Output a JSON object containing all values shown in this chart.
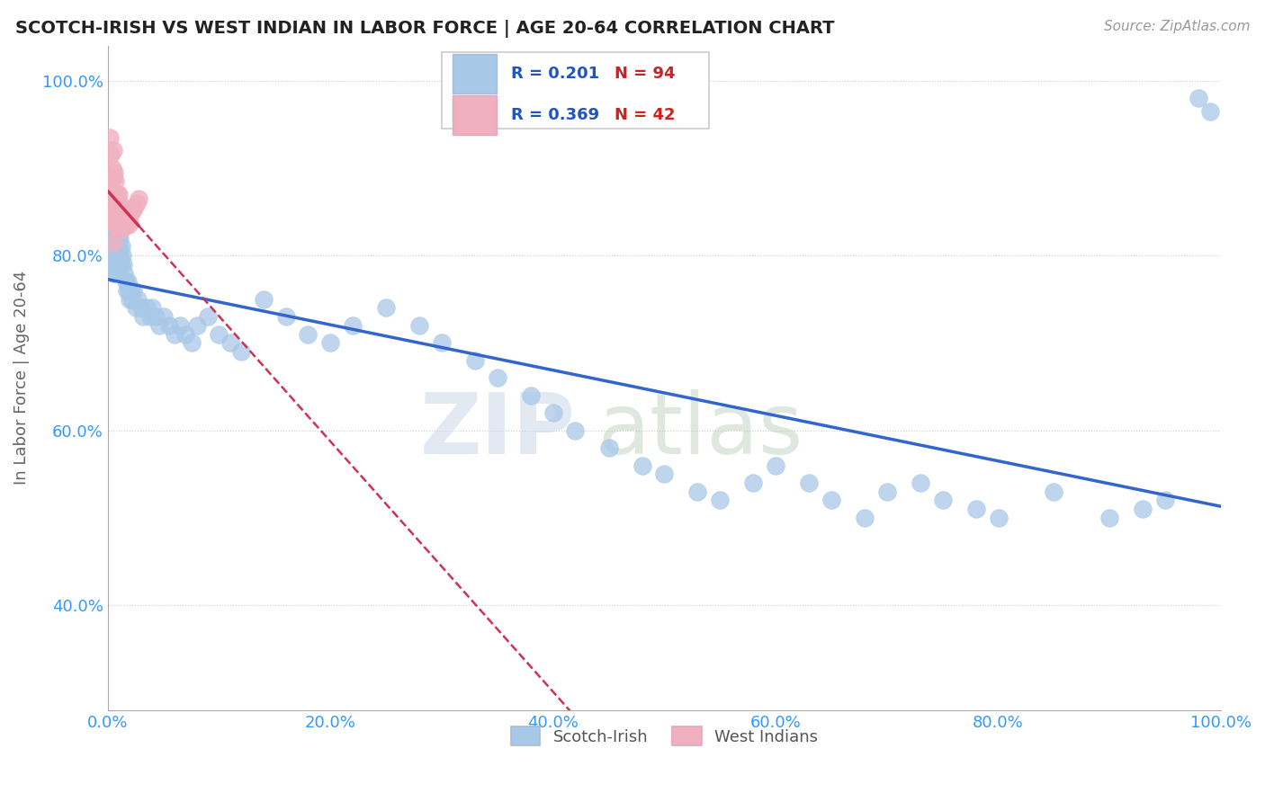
{
  "title": "SCOTCH-IRISH VS WEST INDIAN IN LABOR FORCE | AGE 20-64 CORRELATION CHART",
  "source": "Source: ZipAtlas.com",
  "ylabel": "In Labor Force | Age 20-64",
  "xlim": [
    0.0,
    1.0
  ],
  "ylim": [
    0.28,
    1.04
  ],
  "xticks": [
    0.0,
    0.2,
    0.4,
    0.6,
    0.8,
    1.0
  ],
  "xticklabels": [
    "0.0%",
    "20.0%",
    "40.0%",
    "60.0%",
    "80.0%",
    "100.0%"
  ],
  "ytick_positions": [
    0.4,
    0.6,
    0.8,
    1.0
  ],
  "yticklabels": [
    "40.0%",
    "60.0%",
    "80.0%",
    "100.0%"
  ],
  "r_blue": 0.201,
  "n_blue": 94,
  "r_pink": 0.369,
  "n_pink": 42,
  "blue_color": "#a8c8e8",
  "pink_color": "#f0b0c0",
  "blue_line_color": "#3366cc",
  "pink_line_color": "#cc3355",
  "legend_label_blue": "Scotch-Irish",
  "legend_label_pink": "West Indians",
  "blue_x": [
    0.002,
    0.003,
    0.003,
    0.004,
    0.004,
    0.004,
    0.005,
    0.005,
    0.005,
    0.005,
    0.006,
    0.006,
    0.006,
    0.007,
    0.007,
    0.007,
    0.007,
    0.008,
    0.008,
    0.008,
    0.009,
    0.009,
    0.01,
    0.01,
    0.01,
    0.011,
    0.011,
    0.012,
    0.012,
    0.013,
    0.014,
    0.015,
    0.016,
    0.017,
    0.018,
    0.019,
    0.02,
    0.021,
    0.022,
    0.023,
    0.025,
    0.027,
    0.03,
    0.032,
    0.035,
    0.038,
    0.04,
    0.043,
    0.046,
    0.05,
    0.055,
    0.06,
    0.065,
    0.07,
    0.075,
    0.08,
    0.09,
    0.1,
    0.11,
    0.12,
    0.14,
    0.16,
    0.18,
    0.2,
    0.22,
    0.25,
    0.28,
    0.3,
    0.33,
    0.35,
    0.38,
    0.4,
    0.42,
    0.45,
    0.48,
    0.5,
    0.53,
    0.55,
    0.58,
    0.6,
    0.63,
    0.65,
    0.68,
    0.7,
    0.73,
    0.75,
    0.78,
    0.8,
    0.85,
    0.9,
    0.93,
    0.95,
    0.98,
    0.99
  ],
  "blue_y": [
    0.84,
    0.82,
    0.8,
    0.83,
    0.81,
    0.79,
    0.84,
    0.82,
    0.8,
    0.78,
    0.83,
    0.81,
    0.79,
    0.84,
    0.82,
    0.8,
    0.78,
    0.83,
    0.81,
    0.79,
    0.82,
    0.8,
    0.83,
    0.81,
    0.79,
    0.82,
    0.8,
    0.81,
    0.79,
    0.8,
    0.79,
    0.78,
    0.77,
    0.76,
    0.77,
    0.76,
    0.75,
    0.76,
    0.75,
    0.76,
    0.74,
    0.75,
    0.74,
    0.73,
    0.74,
    0.73,
    0.74,
    0.73,
    0.72,
    0.73,
    0.72,
    0.71,
    0.72,
    0.71,
    0.7,
    0.72,
    0.73,
    0.71,
    0.7,
    0.69,
    0.75,
    0.73,
    0.71,
    0.7,
    0.72,
    0.74,
    0.72,
    0.7,
    0.68,
    0.66,
    0.64,
    0.62,
    0.6,
    0.58,
    0.56,
    0.55,
    0.53,
    0.52,
    0.54,
    0.56,
    0.54,
    0.52,
    0.5,
    0.53,
    0.54,
    0.52,
    0.51,
    0.5,
    0.53,
    0.5,
    0.51,
    0.52,
    0.98,
    0.965
  ],
  "pink_x": [
    0.002,
    0.002,
    0.003,
    0.003,
    0.003,
    0.003,
    0.004,
    0.004,
    0.004,
    0.005,
    0.005,
    0.005,
    0.005,
    0.005,
    0.006,
    0.006,
    0.006,
    0.007,
    0.007,
    0.007,
    0.008,
    0.008,
    0.009,
    0.009,
    0.01,
    0.01,
    0.011,
    0.011,
    0.012,
    0.012,
    0.013,
    0.014,
    0.015,
    0.016,
    0.017,
    0.018,
    0.019,
    0.02,
    0.022,
    0.024,
    0.026,
    0.028
  ],
  "pink_y": [
    0.935,
    0.875,
    0.915,
    0.885,
    0.855,
    0.84,
    0.9,
    0.87,
    0.84,
    0.92,
    0.89,
    0.865,
    0.84,
    0.815,
    0.895,
    0.87,
    0.845,
    0.885,
    0.86,
    0.835,
    0.87,
    0.845,
    0.855,
    0.83,
    0.87,
    0.845,
    0.86,
    0.835,
    0.855,
    0.83,
    0.85,
    0.84,
    0.845,
    0.835,
    0.845,
    0.84,
    0.835,
    0.84,
    0.85,
    0.855,
    0.86,
    0.865
  ]
}
